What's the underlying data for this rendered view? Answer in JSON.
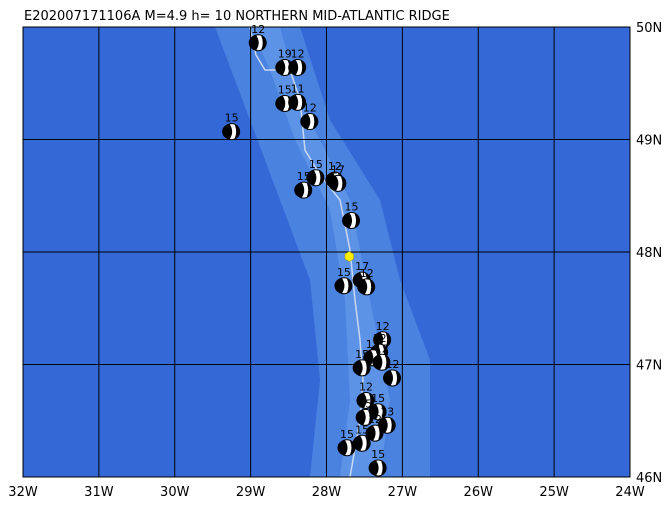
{
  "map": {
    "title": "E202007171106A M=4.9 h= 10 NORTHERN MID-ATLANTIC RIDGE",
    "xlim": [
      -32,
      -24
    ],
    "ylim": [
      46,
      50
    ],
    "xticks": [
      {
        "value": -32,
        "label": "32W"
      },
      {
        "value": -31,
        "label": "31W"
      },
      {
        "value": -30,
        "label": "30W"
      },
      {
        "value": -29,
        "label": "29W"
      },
      {
        "value": -28,
        "label": "28W"
      },
      {
        "value": -27,
        "label": "27W"
      },
      {
        "value": -26,
        "label": "26W"
      },
      {
        "value": -25,
        "label": "25W"
      },
      {
        "value": -24,
        "label": "24W"
      }
    ],
    "yticks": [
      {
        "value": 46,
        "label": "46N"
      },
      {
        "value": 47,
        "label": "47N"
      },
      {
        "value": 48,
        "label": "48N"
      },
      {
        "value": 49,
        "label": "49N"
      },
      {
        "value": 50,
        "label": "50N"
      }
    ],
    "epicenter": {
      "lon": -27.7,
      "lat": 47.96,
      "color": "#ffee00"
    },
    "events": [
      {
        "lon": -28.9,
        "lat": 49.86,
        "label": "12"
      },
      {
        "lon": -28.55,
        "lat": 49.64,
        "label": "19"
      },
      {
        "lon": -28.38,
        "lat": 49.64,
        "label": "12"
      },
      {
        "lon": -28.55,
        "lat": 49.32,
        "label": "15"
      },
      {
        "lon": -28.38,
        "lat": 49.33,
        "label": "11"
      },
      {
        "lon": -28.22,
        "lat": 49.16,
        "label": "12"
      },
      {
        "lon": -29.25,
        "lat": 49.07,
        "label": "15"
      },
      {
        "lon": -28.14,
        "lat": 48.66,
        "label": "15"
      },
      {
        "lon": -28.3,
        "lat": 48.55,
        "label": "15"
      },
      {
        "lon": -27.89,
        "lat": 48.64,
        "label": "12"
      },
      {
        "lon": -27.85,
        "lat": 48.61,
        "label": "17"
      },
      {
        "lon": -27.67,
        "lat": 48.28,
        "label": "15"
      },
      {
        "lon": -27.77,
        "lat": 47.7,
        "label": "15"
      },
      {
        "lon": -27.53,
        "lat": 47.75,
        "label": "17"
      },
      {
        "lon": -27.47,
        "lat": 47.69,
        "label": "12"
      },
      {
        "lon": -27.26,
        "lat": 47.22,
        "label": "12"
      },
      {
        "lon": -27.3,
        "lat": 47.11,
        "label": "12"
      },
      {
        "lon": -27.39,
        "lat": 47.06,
        "label": "15"
      },
      {
        "lon": -27.27,
        "lat": 47.02,
        "label": "12"
      },
      {
        "lon": -27.53,
        "lat": 46.97,
        "label": "15"
      },
      {
        "lon": -27.13,
        "lat": 46.88,
        "label": "12"
      },
      {
        "lon": -27.48,
        "lat": 46.68,
        "label": "12"
      },
      {
        "lon": -27.32,
        "lat": 46.58,
        "label": "15"
      },
      {
        "lon": -27.49,
        "lat": 46.53,
        "label": "15"
      },
      {
        "lon": -27.2,
        "lat": 46.46,
        "label": "13"
      },
      {
        "lon": -27.36,
        "lat": 46.39,
        "label": "12"
      },
      {
        "lon": -27.53,
        "lat": 46.3,
        "label": "15"
      },
      {
        "lon": -27.73,
        "lat": 46.26,
        "label": "15"
      },
      {
        "lon": -27.32,
        "lat": 46.08,
        "label": "15"
      }
    ]
  }
}
